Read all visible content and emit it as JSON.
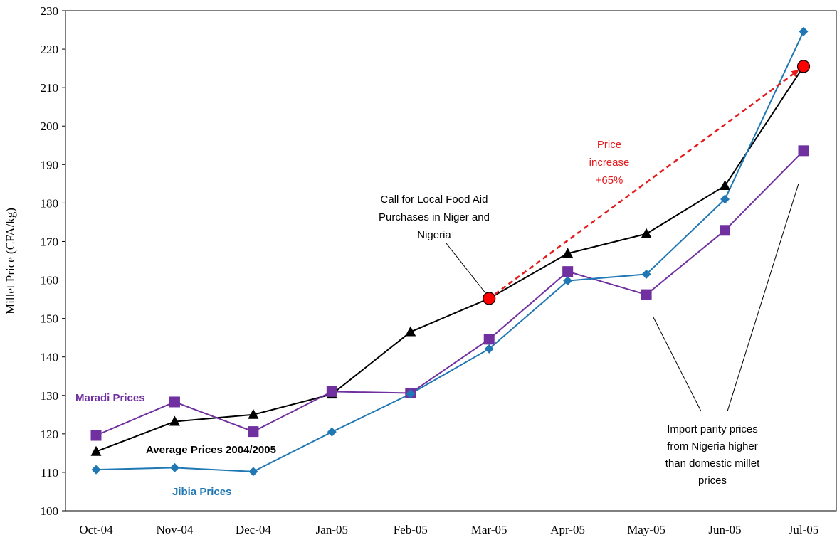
{
  "chart_data": {
    "type": "line",
    "title": "",
    "xlabel": "",
    "ylabel": "Millet Price (CFA/kg)",
    "ylim": [
      100,
      230
    ],
    "yticks": [
      100,
      110,
      120,
      130,
      140,
      150,
      160,
      170,
      180,
      190,
      200,
      210,
      220,
      230
    ],
    "categories": [
      "Oct-04",
      "Nov-04",
      "Dec-04",
      "Jan-05",
      "Feb-05",
      "Mar-05",
      "Apr-05",
      "May-05",
      "Jun-05",
      "Jul-05"
    ],
    "grid": false,
    "series": [
      {
        "name": "Average Prices 2004/2005",
        "color": "#000000",
        "marker": "triangle",
        "values": [
          115.4,
          123.2,
          125.0,
          130.3,
          146.5,
          155.2,
          166.9,
          172.0,
          184.5,
          215.5
        ]
      },
      {
        "name": "Maradi Prices",
        "color": "#7030A0",
        "marker": "square",
        "values": [
          119.6,
          128.3,
          120.6,
          131.0,
          130.6,
          144.6,
          162.2,
          156.2,
          172.9,
          193.6
        ]
      },
      {
        "name": "Jibia Prices",
        "color": "#1F77B4",
        "marker": "diamond",
        "values": [
          110.7,
          111.2,
          110.2,
          120.5,
          130.4,
          142.1,
          159.8,
          161.5,
          181.0,
          224.6
        ]
      }
    ],
    "highlight_points": [
      {
        "category": "Mar-05",
        "value": 155.2
      },
      {
        "category": "Jul-05",
        "value": 215.5
      }
    ],
    "annotations": {
      "price_increase": [
        "Price",
        "increase",
        "+65%"
      ],
      "call_for_aid": [
        "Call for Local Food Aid",
        "Purchases in Niger and",
        "Nigeria"
      ],
      "import_parity": [
        "Import parity prices",
        "from Nigeria higher",
        "than domestic millet",
        "prices"
      ]
    },
    "colors": {
      "annotation_red": "#E41A1C",
      "highlight_fill": "#FF0000"
    }
  }
}
